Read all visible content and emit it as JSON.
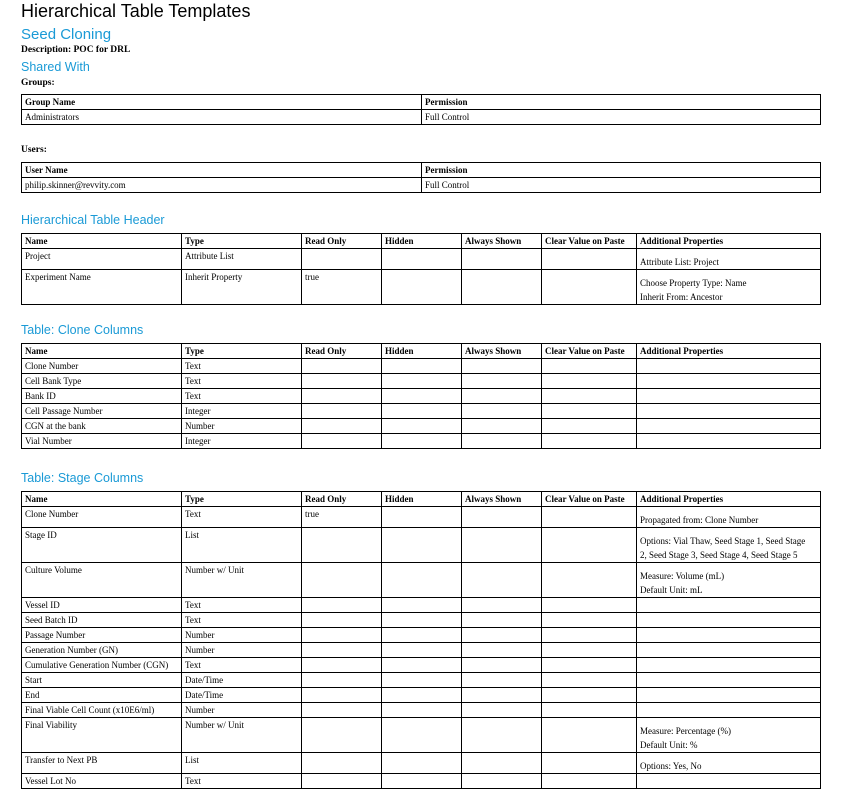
{
  "title": "Hierarchical Table Templates",
  "template_name": "Seed Cloning",
  "description": "Description: POC for DRL",
  "shared_with": {
    "heading": "Shared With",
    "groups_label": "Groups:",
    "groups_headers": [
      "Group Name",
      "Permission"
    ],
    "groups_rows": [
      [
        "Administrators",
        "Full Control"
      ]
    ],
    "users_label": "Users:",
    "users_headers": [
      "User Name",
      "Permission"
    ],
    "users_rows": [
      [
        "philip.skinner@revvity.com",
        "Full Control"
      ]
    ]
  },
  "columns_headers": [
    "Name",
    "Type",
    "Read Only",
    "Hidden",
    "Always Shown",
    "Clear Value on Paste",
    "Additional Properties"
  ],
  "header_table": {
    "heading": "Hierarchical Table Header",
    "rows": [
      [
        "Project",
        "Attribute List",
        "",
        "",
        "",
        "",
        [
          "Attribute List: Project"
        ]
      ],
      [
        "Experiment Name",
        "Inherit Property",
        "true",
        "",
        "",
        "",
        [
          "Choose Property Type: Name",
          "Inherit From: Ancestor"
        ]
      ]
    ]
  },
  "clone_table": {
    "heading": "Table: Clone Columns",
    "rows": [
      [
        "Clone Number",
        "Text",
        "",
        "",
        "",
        "",
        []
      ],
      [
        "Cell Bank Type",
        "Text",
        "",
        "",
        "",
        "",
        []
      ],
      [
        "Bank ID",
        "Text",
        "",
        "",
        "",
        "",
        []
      ],
      [
        "Cell Passage Number",
        "Integer",
        "",
        "",
        "",
        "",
        []
      ],
      [
        "CGN at the bank",
        "Number",
        "",
        "",
        "",
        "",
        []
      ],
      [
        "Vial Number",
        "Integer",
        "",
        "",
        "",
        "",
        []
      ]
    ]
  },
  "stage_table": {
    "heading": "Table: Stage Columns",
    "rows": [
      [
        "Clone Number",
        "Text",
        "true",
        "",
        "",
        "",
        [
          "Propagated from: Clone Number"
        ]
      ],
      [
        "Stage ID",
        "List",
        "",
        "",
        "",
        "",
        [
          "Options: Vial Thaw, Seed Stage 1, Seed Stage",
          "2, Seed Stage 3, Seed Stage 4, Seed Stage 5"
        ]
      ],
      [
        "Culture Volume",
        "Number w/ Unit",
        "",
        "",
        "",
        "",
        [
          "Measure: Volume (mL)",
          "Default Unit: mL"
        ]
      ],
      [
        "Vessel ID",
        "Text",
        "",
        "",
        "",
        "",
        []
      ],
      [
        "Seed Batch ID",
        "Text",
        "",
        "",
        "",
        "",
        []
      ],
      [
        "Passage Number",
        "Number",
        "",
        "",
        "",
        "",
        []
      ],
      [
        "Generation Number (GN)",
        "Number",
        "",
        "",
        "",
        "",
        []
      ],
      [
        "Cumulative Generation Number (CGN)",
        "Text",
        "",
        "",
        "",
        "",
        []
      ],
      [
        "Start",
        "Date/Time",
        "",
        "",
        "",
        "",
        []
      ],
      [
        "End",
        "Date/Time",
        "",
        "",
        "",
        "",
        []
      ],
      [
        "Final Viable Cell Count (x10E6/ml)",
        "Number",
        "",
        "",
        "",
        "",
        []
      ],
      [
        "Final Viability",
        "Number w/ Unit",
        "",
        "",
        "",
        "",
        [
          "Measure: Percentage (%)",
          "Default Unit: %"
        ]
      ],
      [
        "Transfer to Next PB",
        "List",
        "",
        "",
        "",
        "",
        [
          "Options: Yes, No"
        ]
      ],
      [
        "Vessel Lot No",
        "Text",
        "",
        "",
        "",
        "",
        []
      ]
    ]
  },
  "colors": {
    "heading": "#1a9ad6"
  }
}
